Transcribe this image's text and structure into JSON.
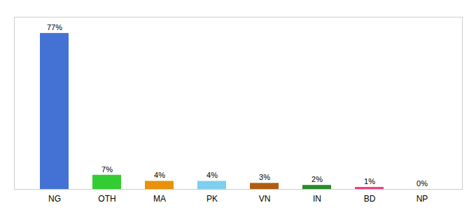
{
  "chart_data": {
    "type": "bar",
    "categories": [
      "NG",
      "OTH",
      "MA",
      "PK",
      "VN",
      "IN",
      "BD",
      "NP"
    ],
    "values": [
      77,
      7,
      4,
      4,
      3,
      2,
      1,
      0
    ],
    "value_labels": [
      "77%",
      "7%",
      "4%",
      "4%",
      "3%",
      "2%",
      "1%",
      "0%"
    ],
    "colors": [
      "#4472d4",
      "#33cc33",
      "#e8920a",
      "#7ecfed",
      "#b05c14",
      "#2a8a2a",
      "#f03c78",
      "#e8d0d0"
    ],
    "ylim": [
      0,
      85
    ],
    "data_labels": true,
    "tick_labels": "x"
  }
}
